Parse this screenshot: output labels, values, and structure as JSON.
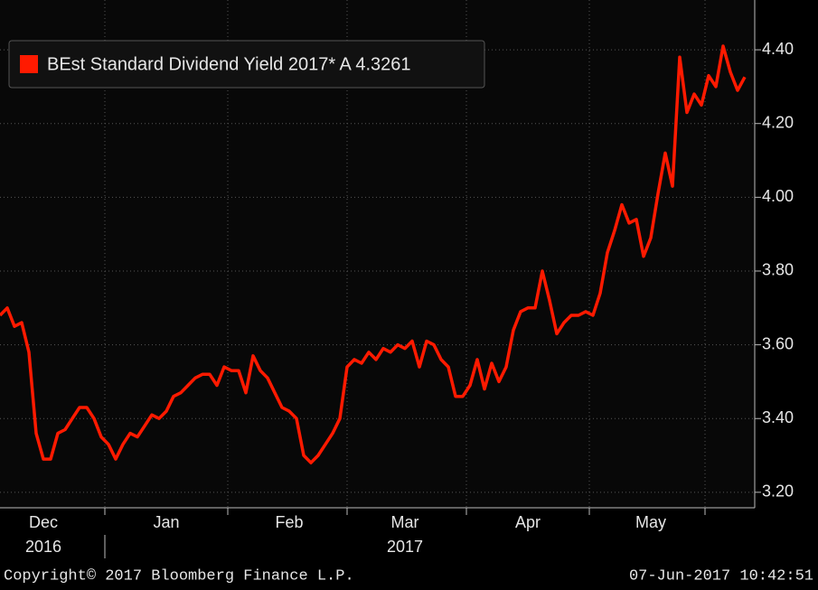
{
  "chart_data": {
    "type": "line",
    "categories": [
      null,
      null,
      null,
      null,
      null,
      null,
      "Dec",
      null,
      null,
      null,
      null,
      null,
      null,
      null,
      null,
      null,
      null,
      null,
      null,
      null,
      null,
      null,
      null,
      "Jan",
      null,
      null,
      null,
      null,
      null,
      null,
      null,
      null,
      null,
      null,
      null,
      null,
      null,
      null,
      null,
      null,
      "Feb",
      null,
      null,
      null,
      null,
      null,
      null,
      null,
      null,
      null,
      null,
      null,
      null,
      null,
      null,
      null,
      "Mar",
      null,
      null,
      null,
      null,
      null,
      null,
      null,
      null,
      null,
      null,
      null,
      null,
      null,
      null,
      null,
      null,
      "Apr",
      null,
      null,
      null,
      null,
      null,
      null,
      null,
      null,
      null,
      null,
      null,
      null,
      null,
      null,
      null,
      null,
      "May",
      null,
      null,
      null,
      null,
      null,
      null,
      null,
      null,
      null,
      null,
      null,
      null,
      null
    ],
    "year_labels": [
      "2016",
      "2017"
    ],
    "series": [
      {
        "name": "BEst Standard Dividend Yield 2017* A 4.3261",
        "color": "#ff1a00",
        "values": [
          3.68,
          3.7,
          3.65,
          3.66,
          3.58,
          3.36,
          3.29,
          3.29,
          3.36,
          3.37,
          3.4,
          3.43,
          3.43,
          3.4,
          3.35,
          3.33,
          3.29,
          3.33,
          3.36,
          3.35,
          3.38,
          3.41,
          3.4,
          3.42,
          3.46,
          3.47,
          3.49,
          3.51,
          3.52,
          3.52,
          3.49,
          3.54,
          3.53,
          3.53,
          3.47,
          3.57,
          3.53,
          3.51,
          3.47,
          3.43,
          3.42,
          3.4,
          3.3,
          3.28,
          3.3,
          3.33,
          3.36,
          3.4,
          3.54,
          3.56,
          3.55,
          3.58,
          3.56,
          3.59,
          3.58,
          3.6,
          3.59,
          3.61,
          3.54,
          3.61,
          3.6,
          3.56,
          3.54,
          3.46,
          3.46,
          3.49,
          3.56,
          3.48,
          3.55,
          3.5,
          3.54,
          3.64,
          3.69,
          3.7,
          3.7,
          3.8,
          3.72,
          3.63,
          3.66,
          3.68,
          3.68,
          3.69,
          3.68,
          3.74,
          3.85,
          3.91,
          3.98,
          3.93,
          3.94,
          3.84,
          3.89,
          4.01,
          4.12,
          4.03,
          4.38,
          4.23,
          4.28,
          4.25,
          4.33,
          4.3,
          4.41,
          4.34,
          4.29,
          4.3261
        ]
      }
    ],
    "ylim": [
      3.158,
      4.535
    ],
    "yticks": [
      {
        "value": 3.2,
        "label": "3.20"
      },
      {
        "value": 3.4,
        "label": "3.40"
      },
      {
        "value": 3.6,
        "label": "3.60"
      },
      {
        "value": 3.8,
        "label": "3.80"
      },
      {
        "value": 4.0,
        "label": "4.00"
      },
      {
        "value": 4.2,
        "label": "4.20"
      },
      {
        "value": 4.4,
        "label": "4.40"
      }
    ],
    "grid": true,
    "legend": "upper left",
    "footer_left": "Copyright© 2017 Bloomberg Finance L.P.",
    "footer_right": "07-Jun-2017 10:42:51"
  }
}
